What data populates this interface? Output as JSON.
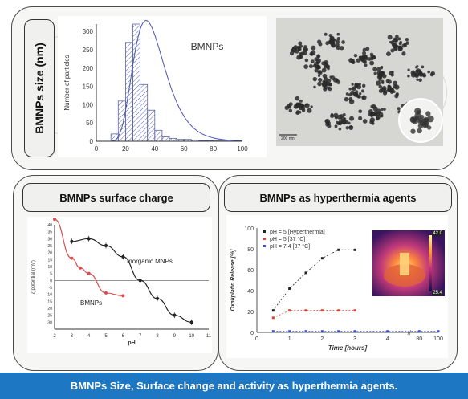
{
  "top_panel": {
    "side_label": "BMNPs size (nm)"
  },
  "left_panel": {
    "title": "BMNPs surface charge"
  },
  "right_panel": {
    "title": "BMNPs as hyperthermia agents"
  },
  "tem_image": {
    "scale_label": "200 nm"
  },
  "thermal_image": {
    "scale_top": "42.0",
    "scale_bottom": "25.4"
  },
  "footer": {
    "caption": "BMNPs Size, Surface change and activity as hyperthermia agents."
  },
  "chart_data": [
    {
      "type": "bar",
      "title": "BMNPs",
      "xlabel": "",
      "ylabel": "Number of particles",
      "xlim": [
        0,
        100
      ],
      "ylim": [
        0,
        320
      ],
      "xticks": [
        0,
        20,
        40,
        60,
        80,
        100
      ],
      "yticks": [
        0,
        50,
        100,
        150,
        200,
        250,
        300
      ],
      "bin_width": 5,
      "bin_starts": [
        10,
        15,
        20,
        25,
        30,
        35,
        40,
        45,
        50,
        55,
        60,
        65,
        70,
        75,
        80,
        85
      ],
      "values": [
        20,
        110,
        270,
        320,
        155,
        85,
        30,
        12,
        8,
        5,
        5,
        3,
        2,
        2,
        1,
        1
      ],
      "fit_curve": true,
      "grid": false,
      "color": "#5c64a8"
    },
    {
      "type": "line",
      "title": "",
      "xlabel": "pH",
      "ylabel": "ζ potential (mV)",
      "xlim": [
        2,
        11
      ],
      "ylim": [
        -35,
        40
      ],
      "xticks": [
        2,
        3,
        4,
        5,
        6,
        7,
        8,
        9,
        10,
        11
      ],
      "yticks": [
        -30,
        -25,
        -20,
        -15,
        -10,
        -5,
        0,
        5,
        10,
        15,
        20,
        25,
        30,
        35,
        40
      ],
      "series": [
        {
          "name": "Inorganic MNPs",
          "color": "#222222",
          "x": [
            3,
            4,
            5,
            6,
            7,
            8,
            9,
            10
          ],
          "y": [
            28,
            30,
            25,
            17,
            0,
            -13,
            -25,
            -30
          ]
        },
        {
          "name": "BMNPs",
          "color": "#d84d4d",
          "x": [
            2,
            3,
            3.5,
            4,
            5,
            6
          ],
          "y": [
            44,
            16,
            9,
            5,
            -9,
            -11
          ]
        }
      ],
      "grid": false
    },
    {
      "type": "scatter",
      "title": "",
      "xlabel": "Time [hours]",
      "ylabel": "Oxaliplatin Release [%]",
      "ylim": [
        0,
        100
      ],
      "xticks": [
        "0",
        "1",
        "2",
        "3",
        "4",
        "80",
        "100"
      ],
      "yticks": [
        0,
        20,
        40,
        60,
        80,
        100
      ],
      "legend": "top-left",
      "series": [
        {
          "name": "pH = 5 [Hyperthermia]",
          "color": "#222222",
          "x": [
            0.5,
            1,
            1.5,
            2,
            2.5,
            3
          ],
          "y": [
            21,
            42,
            57,
            71,
            79,
            79
          ]
        },
        {
          "name": "pH = 5 [37 °C]",
          "color": "#e0403a",
          "x": [
            0.5,
            1,
            1.5,
            2,
            2.5,
            3
          ],
          "y": [
            14,
            21,
            21,
            21,
            21,
            21
          ]
        },
        {
          "name": "pH = 7.4 [37 °C]",
          "color": "#3b4fd6",
          "x": [
            0.5,
            1,
            1.5,
            2,
            2.5,
            3,
            4,
            80,
            100
          ],
          "y": [
            1,
            1,
            1,
            1,
            1,
            1,
            1,
            1,
            1
          ]
        }
      ]
    }
  ]
}
